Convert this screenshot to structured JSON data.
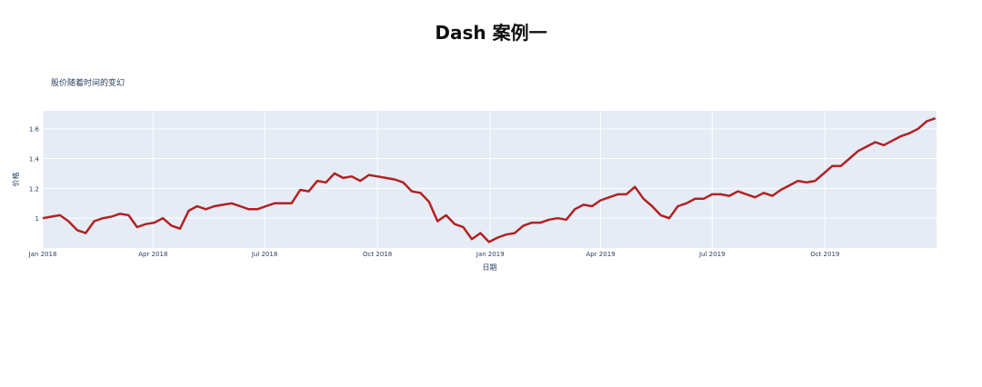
{
  "page": {
    "title": "Dash 案例一"
  },
  "chart_data": {
    "type": "line",
    "title": "股价随着时间的变幻",
    "xlabel": "日期",
    "ylabel": "价格",
    "x_tick_labels": [
      "Jan 2018",
      "Apr 2018",
      "Jul 2018",
      "Oct 2018",
      "Jan 2019",
      "Apr 2019",
      "Jul 2019",
      "Oct 2019"
    ],
    "y_tick_labels": [
      "1",
      "1.2",
      "1.4",
      "1.6"
    ],
    "y_ticks": [
      1,
      1.2,
      1.4,
      1.6
    ],
    "xlim": [
      "2018-01-01",
      "2019-12-31"
    ],
    "ylim": [
      0.8,
      1.72
    ],
    "grid": true,
    "line_color": "#b22222",
    "plot_bg": "#e5ecf6",
    "series": [
      {
        "x": [
          "2018-01-01",
          "2018-01-08",
          "2018-01-15",
          "2018-01-22",
          "2018-01-29",
          "2018-02-05",
          "2018-02-12",
          "2018-02-19",
          "2018-02-26",
          "2018-03-05",
          "2018-03-12",
          "2018-03-19",
          "2018-03-26",
          "2018-04-02",
          "2018-04-09",
          "2018-04-16",
          "2018-04-23",
          "2018-04-30",
          "2018-05-07",
          "2018-05-14",
          "2018-05-21",
          "2018-05-28",
          "2018-06-04",
          "2018-06-11",
          "2018-06-18",
          "2018-06-25",
          "2018-07-02",
          "2018-07-09",
          "2018-07-16",
          "2018-07-23",
          "2018-07-30",
          "2018-08-06",
          "2018-08-13",
          "2018-08-20",
          "2018-08-27",
          "2018-09-03",
          "2018-09-10",
          "2018-09-17",
          "2018-09-24",
          "2018-10-01",
          "2018-10-08",
          "2018-10-15",
          "2018-10-22",
          "2018-10-29",
          "2018-11-05",
          "2018-11-12",
          "2018-11-19",
          "2018-11-26",
          "2018-12-03",
          "2018-12-10",
          "2018-12-17",
          "2018-12-24",
          "2018-12-31",
          "2019-01-07",
          "2019-01-14",
          "2019-01-21",
          "2019-01-28",
          "2019-02-04",
          "2019-02-11",
          "2019-02-18",
          "2019-02-25",
          "2019-03-04",
          "2019-03-11",
          "2019-03-18",
          "2019-03-25",
          "2019-04-01",
          "2019-04-08",
          "2019-04-15",
          "2019-04-22",
          "2019-04-29",
          "2019-05-06",
          "2019-05-13",
          "2019-05-20",
          "2019-05-27",
          "2019-06-03",
          "2019-06-10",
          "2019-06-17",
          "2019-06-24",
          "2019-07-01",
          "2019-07-08",
          "2019-07-15",
          "2019-07-22",
          "2019-07-29",
          "2019-08-05",
          "2019-08-12",
          "2019-08-19",
          "2019-08-26",
          "2019-09-02",
          "2019-09-09",
          "2019-09-16",
          "2019-09-23",
          "2019-09-30",
          "2019-10-07",
          "2019-10-14",
          "2019-10-21",
          "2019-10-28",
          "2019-11-04",
          "2019-11-11",
          "2019-11-18",
          "2019-11-25",
          "2019-12-02",
          "2019-12-09",
          "2019-12-16",
          "2019-12-23",
          "2019-12-30"
        ],
        "y": [
          1.0,
          1.01,
          1.02,
          0.98,
          0.92,
          0.9,
          0.98,
          1.0,
          1.01,
          1.03,
          1.02,
          0.94,
          0.96,
          0.97,
          1.0,
          0.95,
          0.93,
          1.05,
          1.08,
          1.06,
          1.08,
          1.09,
          1.1,
          1.08,
          1.06,
          1.06,
          1.08,
          1.1,
          1.1,
          1.1,
          1.19,
          1.18,
          1.25,
          1.24,
          1.3,
          1.27,
          1.28,
          1.25,
          1.29,
          1.28,
          1.27,
          1.26,
          1.24,
          1.18,
          1.17,
          1.11,
          0.98,
          1.02,
          0.96,
          0.94,
          0.86,
          0.9,
          0.84,
          0.87,
          0.89,
          0.9,
          0.95,
          0.97,
          0.97,
          0.99,
          1.0,
          0.99,
          1.06,
          1.09,
          1.08,
          1.12,
          1.14,
          1.16,
          1.16,
          1.21,
          1.13,
          1.08,
          1.02,
          1.0,
          1.08,
          1.1,
          1.13,
          1.13,
          1.16,
          1.16,
          1.15,
          1.18,
          1.16,
          1.14,
          1.17,
          1.15,
          1.19,
          1.22,
          1.25,
          1.24,
          1.25,
          1.3,
          1.35,
          1.35,
          1.4,
          1.45,
          1.48,
          1.51,
          1.49,
          1.52,
          1.55,
          1.57,
          1.6,
          1.65,
          1.67
        ]
      }
    ]
  }
}
